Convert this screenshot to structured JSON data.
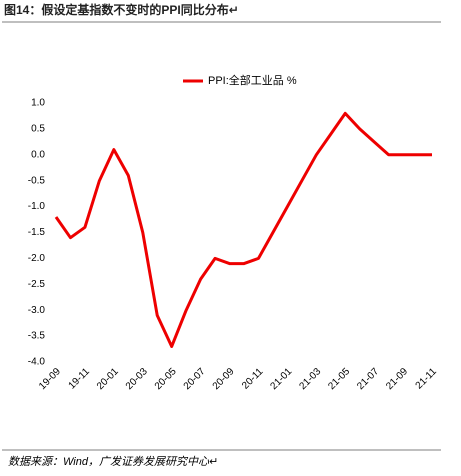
{
  "chart_data": {
    "type": "line",
    "title": "图14：假设定基指数不变时的PPI同比分布↵",
    "source": "数据来源：Wind，广发证券发展研究中心↵",
    "categories": [
      "19-09",
      null,
      "19-11",
      null,
      "20-01",
      null,
      "20-03",
      null,
      "20-05",
      null,
      "20-07",
      null,
      "20-09",
      null,
      "20-11",
      null,
      "21-01",
      null,
      "21-03",
      null,
      "21-05",
      null,
      "21-07",
      null,
      "21-09",
      null,
      "21-11"
    ],
    "series": [
      {
        "name": "PPI:全部工业品 %",
        "color": "#ee0000",
        "values": [
          -1.2,
          -1.6,
          -1.4,
          -0.5,
          0.1,
          -0.4,
          -1.5,
          -3.1,
          -3.7,
          -3.0,
          -2.4,
          -2.0,
          -2.1,
          -2.1,
          -2.0,
          -1.5,
          -1.0,
          -0.5,
          0.0,
          0.4,
          0.8,
          0.5,
          0.25,
          0.0,
          0.0,
          0.0,
          0.0
        ]
      }
    ],
    "ylim": [
      -4,
      1
    ],
    "yticks": [
      {
        "value": 1,
        "label": "1.0"
      },
      {
        "value": 0.5,
        "label": "0.5"
      },
      {
        "value": 0,
        "label": "0.0"
      },
      {
        "value": -0.5,
        "label": "-0.5"
      },
      {
        "value": -1,
        "label": "-1.0"
      },
      {
        "value": -1.5,
        "label": "-1.5"
      },
      {
        "value": -2,
        "label": "-2.0"
      },
      {
        "value": -2.5,
        "label": "-2.5"
      },
      {
        "value": -3,
        "label": "-3.0"
      },
      {
        "value": -3.5,
        "label": "-3.5"
      },
      {
        "value": -4,
        "label": "-4.0"
      }
    ],
    "grid": false,
    "legend": "top"
  }
}
